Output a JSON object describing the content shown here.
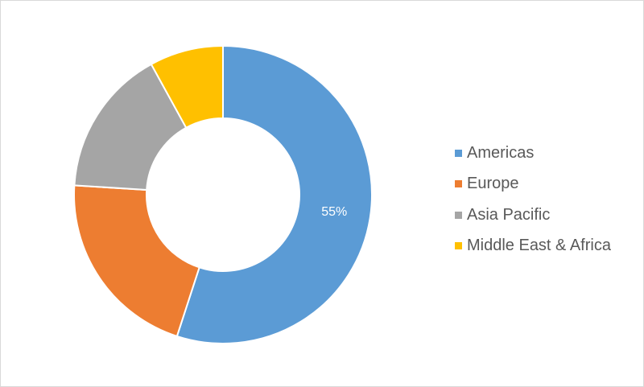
{
  "chart_data": {
    "type": "pie",
    "variant": "donut",
    "title": "",
    "categories": [
      "Americas",
      "Europe",
      "Asia Pacific",
      "Middle East & Africa"
    ],
    "values": [
      55,
      21,
      16,
      8
    ],
    "colors": [
      "#5b9bd5",
      "#ed7d31",
      "#a5a5a5",
      "#ffc000"
    ],
    "data_labels": [
      "55%",
      "",
      "",
      ""
    ],
    "legend_position": "right"
  }
}
